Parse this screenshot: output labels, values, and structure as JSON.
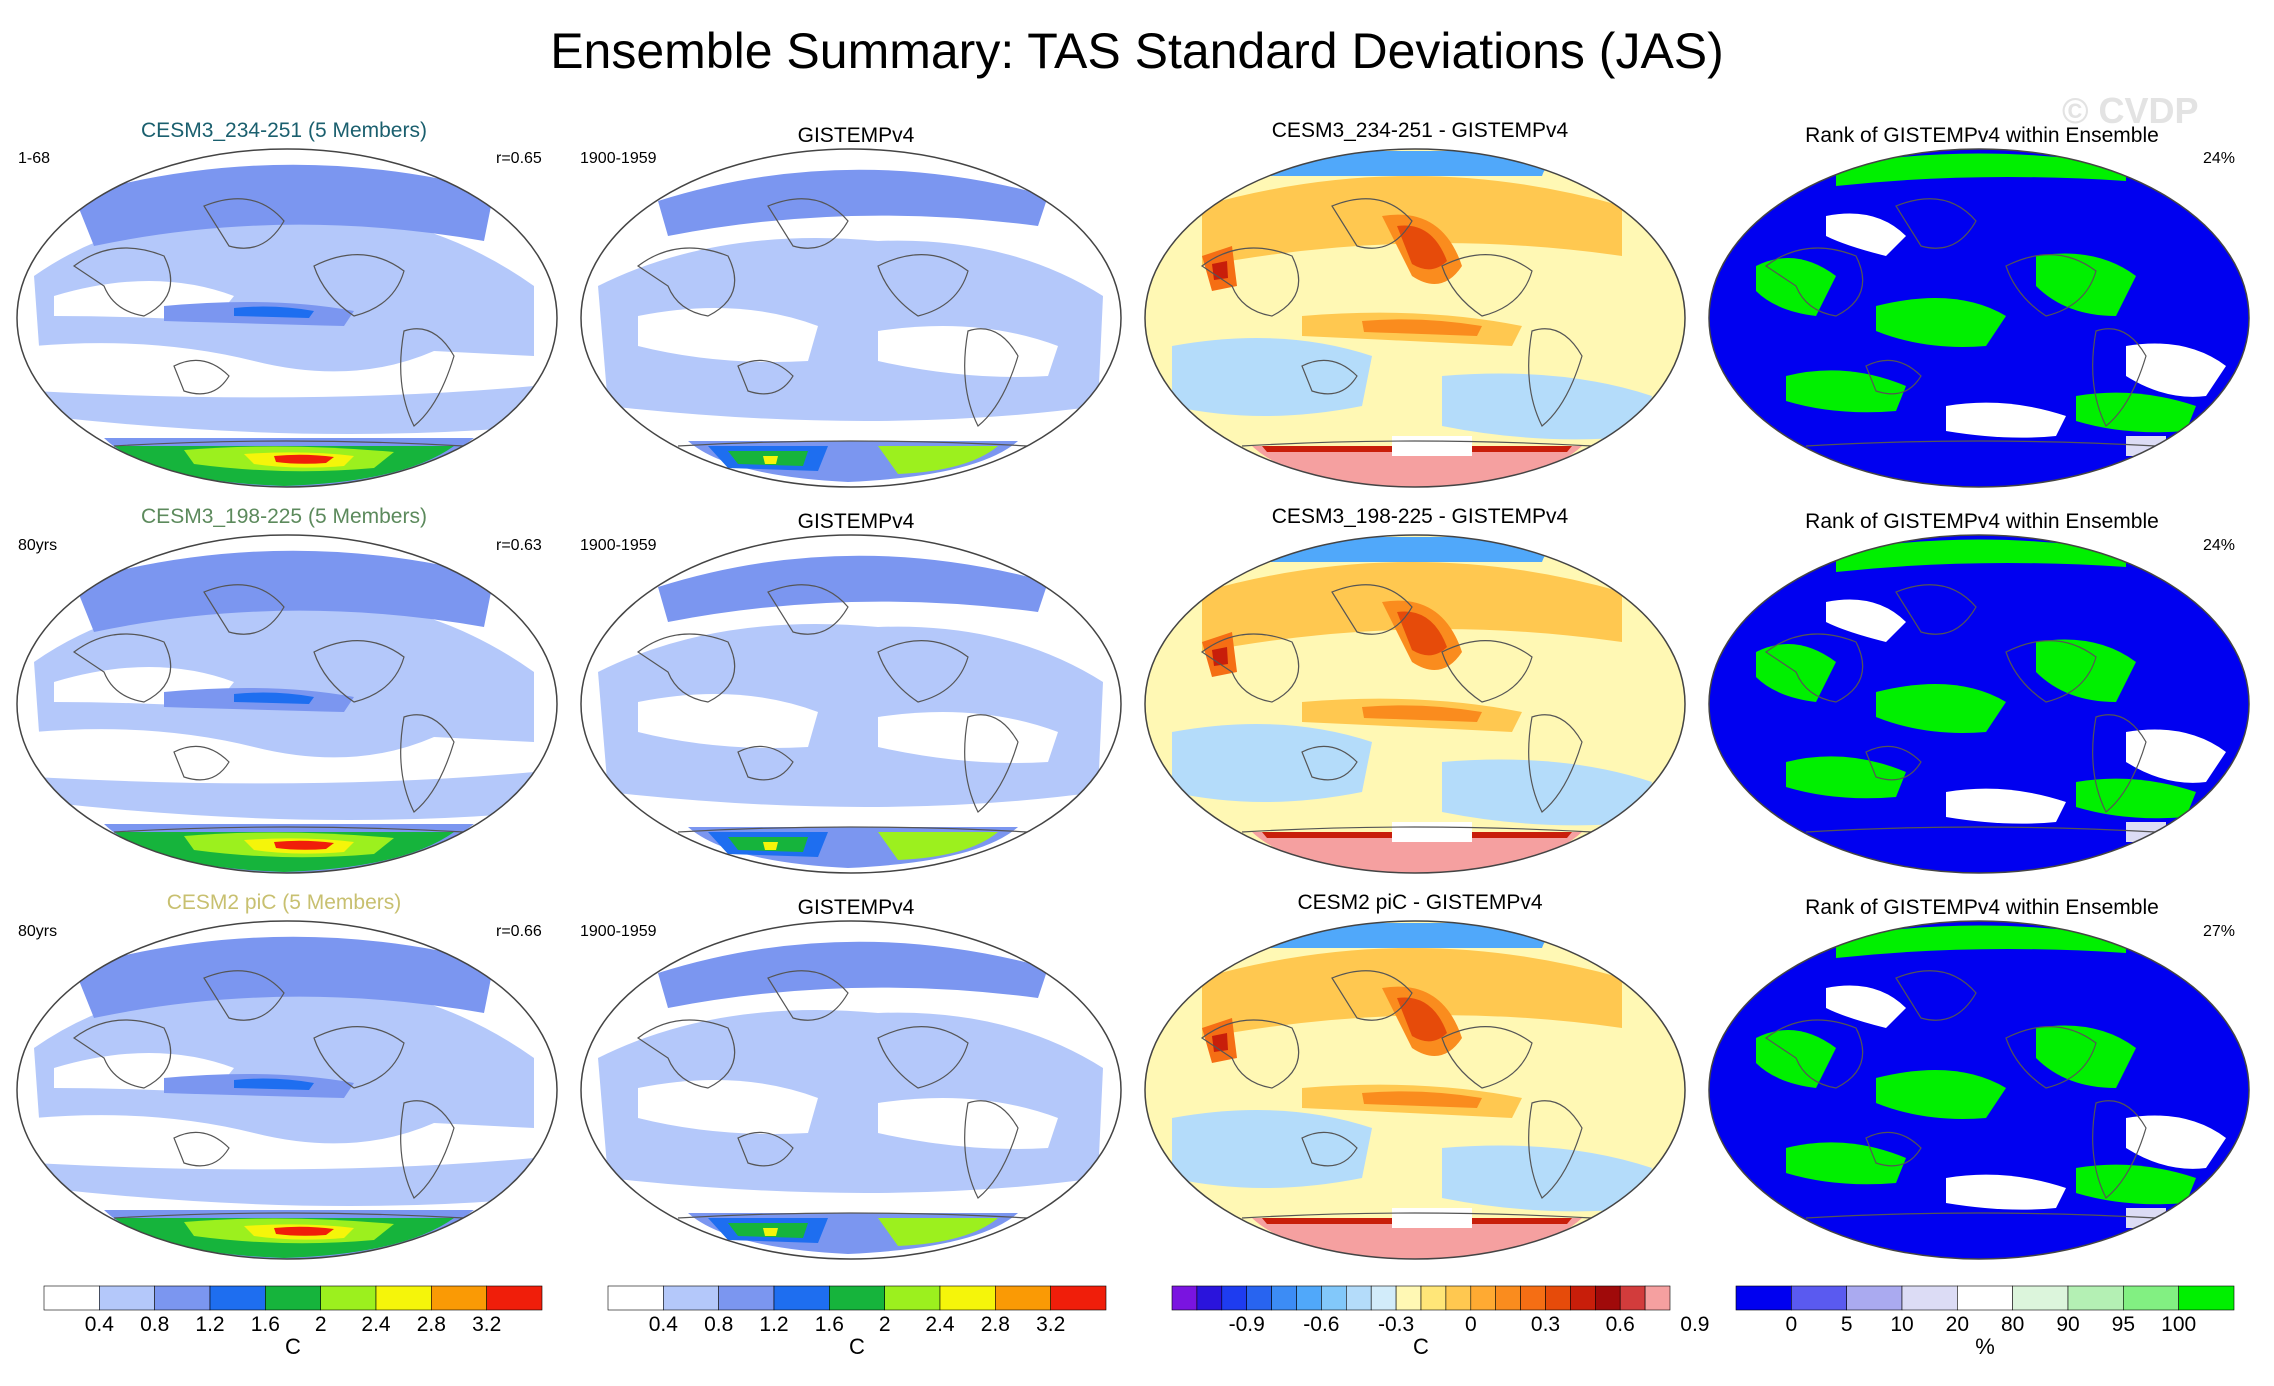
{
  "title": "Ensemble Summary: TAS Standard Deviations (JAS)",
  "watermark": "© CVDP",
  "colors": {
    "model_title_1": "#1a5f6e",
    "model_title_2": "#5c8a5c",
    "model_title_3": "#c8c070",
    "coastline": "#555555"
  },
  "rows": [
    {
      "model": {
        "title": "CESM3_234-251 (5 Members)",
        "left": "1-68",
        "right": "r=0.65"
      },
      "obs": {
        "title": "GISTEMPv4",
        "left": "1900-1959"
      },
      "diff": {
        "title": "CESM3_234-251 - GISTEMPv4"
      },
      "rank": {
        "title": "Rank of GISTEMPv4 within Ensemble",
        "right": "24%"
      }
    },
    {
      "model": {
        "title": "CESM3_198-225 (5 Members)",
        "left": "80yrs",
        "right": "r=0.63"
      },
      "obs": {
        "title": "GISTEMPv4",
        "left": "1900-1959"
      },
      "diff": {
        "title": "CESM3_198-225 - GISTEMPv4"
      },
      "rank": {
        "title": "Rank of GISTEMPv4 within Ensemble",
        "right": "24%"
      }
    },
    {
      "model": {
        "title": "CESM2 piC (5 Members)",
        "left": "80yrs",
        "right": "r=0.66"
      },
      "obs": {
        "title": "GISTEMPv4",
        "left": "1900-1959"
      },
      "diff": {
        "title": "CESM2 piC - GISTEMPv4"
      },
      "rank": {
        "title": "Rank of GISTEMPv4 within Ensemble",
        "right": "27%"
      }
    }
  ],
  "chart_data": [
    {
      "type": "heatmap",
      "role": "std-dev colorbar (model & obs)",
      "unit": "C",
      "colors": [
        "#ffffff",
        "#b4c8fa",
        "#7b96f0",
        "#1e6ef0",
        "#16b43c",
        "#9cf01e",
        "#f5f50a",
        "#fa9a05",
        "#f01e0a"
      ],
      "tick_labels": [
        "0.4",
        "0.8",
        "1.2",
        "1.6",
        "2",
        "2.4",
        "2.8",
        "3.2"
      ]
    },
    {
      "type": "heatmap",
      "role": "difference colorbar",
      "unit": "C",
      "colors": [
        "#7a14e0",
        "#2a14dc",
        "#1e3cf0",
        "#2864f0",
        "#3c8cf5",
        "#50a8fa",
        "#82c8fa",
        "#b4dcfa",
        "#d2ecfa",
        "#fff8b4",
        "#ffe678",
        "#ffc850",
        "#ffaa32",
        "#fa8c1e",
        "#f56e14",
        "#e64b0a",
        "#c81e0a",
        "#a00a0a",
        "#d23c3c",
        "#f5a0a0"
      ],
      "tick_labels": [
        "-0.9",
        "-0.6",
        "-0.3",
        "0",
        "0.3",
        "0.6",
        "0.9"
      ]
    },
    {
      "type": "heatmap",
      "role": "rank colorbar",
      "unit": "%",
      "colors": [
        "#0000f0",
        "#5a5af0",
        "#aaaaf0",
        "#dcdcf5",
        "#ffffff",
        "#dcf5dc",
        "#b4f0b4",
        "#82f082",
        "#00f000"
      ],
      "tick_labels": [
        "0",
        "5",
        "10",
        "20",
        "80",
        "90",
        "95",
        "100"
      ]
    }
  ]
}
